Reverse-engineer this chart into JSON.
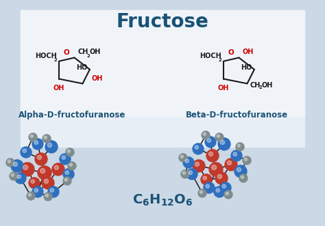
{
  "title": "Fructose",
  "title_color": "#1a5276",
  "title_fontsize": 20,
  "title_fontweight": "bold",
  "bg_color": "#dde6ef",
  "bg_center_color": "#eef2f7",
  "label_left": "Alpha-D-fructofuranose",
  "label_right": "Beta-D-fructofuranose",
  "label_color": "#1a5276",
  "label_fontsize": 8.5,
  "formula_color": "#1a5276",
  "formula_fontsize": 12,
  "red_color": "#c0392b",
  "blue_color": "#2e6fbe",
  "gray_color": "#7f8c8d",
  "bond_color": "#1a1a1a",
  "struct_black": "#1a1a1a",
  "struct_red": "#cc0000",
  "struct_lw": 1.5
}
